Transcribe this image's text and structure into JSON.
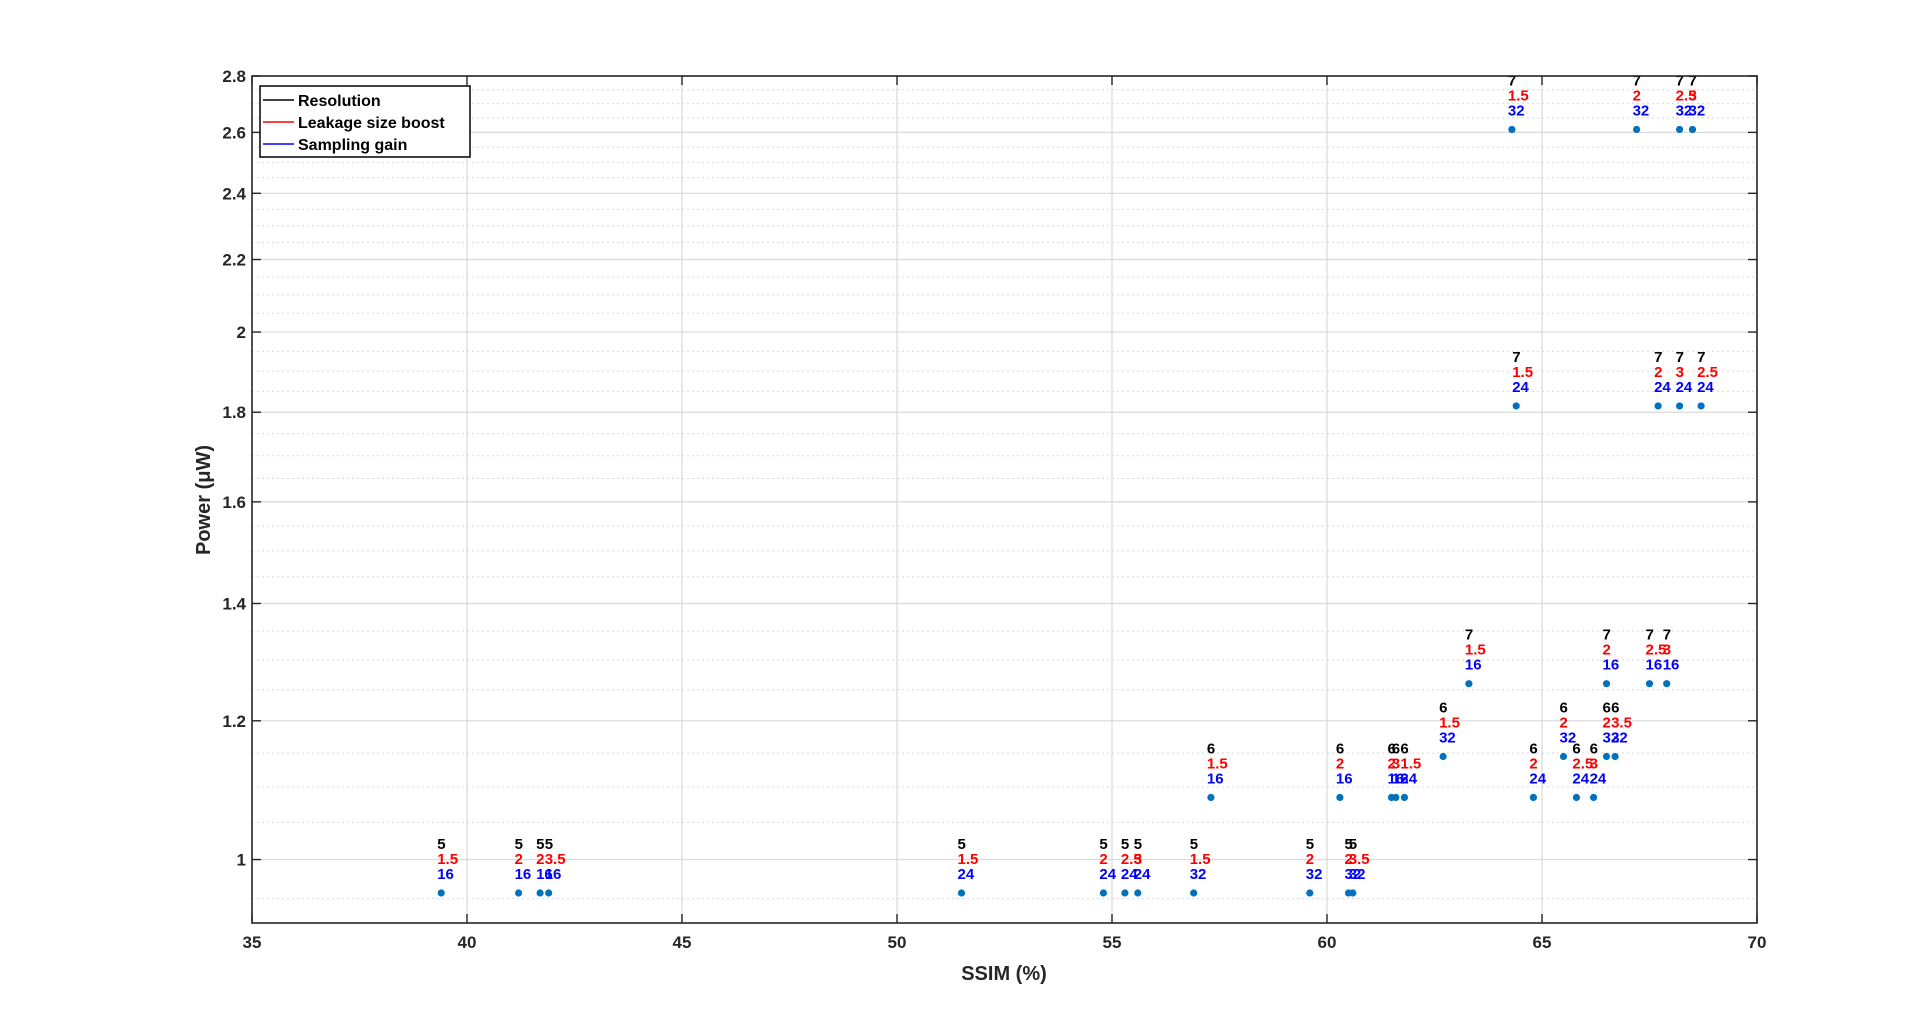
{
  "chart_data": {
    "type": "scatter",
    "title": "",
    "xlabel": "SSIM (%)",
    "ylabel": "Power (μW)",
    "xlim": [
      35,
      70
    ],
    "ylim": [
      0.92,
      2.8
    ],
    "yscale": "log",
    "grid": true,
    "minor_grid": true,
    "legend_position": "top-left",
    "x_ticks": [
      35,
      40,
      45,
      50,
      55,
      60,
      65,
      70
    ],
    "x_tick_labels": [
      "35",
      "40",
      "45",
      "50",
      "55",
      "60",
      "65",
      "70"
    ],
    "y_ticks": [
      1,
      1.2,
      1.4,
      1.6,
      1.8,
      2,
      2.2,
      2.4,
      2.6,
      2.8
    ],
    "y_tick_labels": [
      "1",
      "1.2",
      "1.4",
      "1.6",
      "1.8",
      "2",
      "2.2",
      "2.4",
      "2.6",
      "2.8"
    ],
    "legend": [
      {
        "label": "Resolution",
        "color": "#000000"
      },
      {
        "label": "Leakage size boost",
        "color": "#ff0000"
      },
      {
        "label": "Sampling gain",
        "color": "#0000ff"
      }
    ],
    "colors": {
      "marker": "#0072bd",
      "resolution": "#000000",
      "boost": "#ff0000",
      "gain": "#0000ff",
      "grid": "#d9d9d9",
      "axis": "#262626"
    },
    "points": [
      {
        "x": 39.4,
        "y": 0.957,
        "resolution": "5",
        "boost": "1.5",
        "gain": "16"
      },
      {
        "x": 41.2,
        "y": 0.957,
        "resolution": "5",
        "boost": "2",
        "gain": "16"
      },
      {
        "x": 41.7,
        "y": 0.957,
        "resolution": "5",
        "boost": "2",
        "gain": "16"
      },
      {
        "x": 41.9,
        "y": 0.957,
        "resolution": "5",
        "boost": "3.5",
        "gain": "16"
      },
      {
        "x": 51.5,
        "y": 0.957,
        "resolution": "5",
        "boost": "1.5",
        "gain": "24"
      },
      {
        "x": 54.8,
        "y": 0.957,
        "resolution": "5",
        "boost": "2",
        "gain": "24"
      },
      {
        "x": 55.3,
        "y": 0.957,
        "resolution": "5",
        "boost": "2.5",
        "gain": "24"
      },
      {
        "x": 55.6,
        "y": 0.957,
        "resolution": "5",
        "boost": "3",
        "gain": "24"
      },
      {
        "x": 56.9,
        "y": 0.957,
        "resolution": "5",
        "boost": "1.5",
        "gain": "32"
      },
      {
        "x": 59.6,
        "y": 0.957,
        "resolution": "5",
        "boost": "2",
        "gain": "32"
      },
      {
        "x": 60.5,
        "y": 0.957,
        "resolution": "5",
        "boost": "2",
        "gain": "32"
      },
      {
        "x": 60.6,
        "y": 0.957,
        "resolution": "5",
        "boost": "3.5",
        "gain": "32"
      },
      {
        "x": 57.3,
        "y": 1.085,
        "resolution": "6",
        "boost": "1.5",
        "gain": "16"
      },
      {
        "x": 60.3,
        "y": 1.085,
        "resolution": "6",
        "boost": "2",
        "gain": "16"
      },
      {
        "x": 61.5,
        "y": 1.085,
        "resolution": "6",
        "boost": "2",
        "gain": "16"
      },
      {
        "x": 61.6,
        "y": 1.085,
        "resolution": "6",
        "boost": "3",
        "gain": "16"
      },
      {
        "x": 61.8,
        "y": 1.085,
        "resolution": "6",
        "boost": "1.5",
        "gain": "24"
      },
      {
        "x": 62.7,
        "y": 1.145,
        "resolution": "6",
        "boost": "1.5",
        "gain": "32"
      },
      {
        "x": 64.8,
        "y": 1.085,
        "resolution": "6",
        "boost": "2",
        "gain": "24"
      },
      {
        "x": 65.5,
        "y": 1.145,
        "resolution": "6",
        "boost": "2",
        "gain": "32"
      },
      {
        "x": 65.8,
        "y": 1.085,
        "resolution": "6",
        "boost": "2.5",
        "gain": "24"
      },
      {
        "x": 66.2,
        "y": 1.085,
        "resolution": "6",
        "boost": "3",
        "gain": "24"
      },
      {
        "x": 66.5,
        "y": 1.145,
        "resolution": "6",
        "boost": "2",
        "gain": "32"
      },
      {
        "x": 66.7,
        "y": 1.145,
        "resolution": "6",
        "boost": "3.5",
        "gain": "32"
      },
      {
        "x": 63.3,
        "y": 1.26,
        "resolution": "7",
        "boost": "1.5",
        "gain": "16"
      },
      {
        "x": 66.5,
        "y": 1.26,
        "resolution": "7",
        "boost": "2",
        "gain": "16"
      },
      {
        "x": 67.5,
        "y": 1.26,
        "resolution": "7",
        "boost": "2.5",
        "gain": "16"
      },
      {
        "x": 67.9,
        "y": 1.26,
        "resolution": "7",
        "boost": "3",
        "gain": "16"
      },
      {
        "x": 64.4,
        "y": 1.815,
        "resolution": "7",
        "boost": "1.5",
        "gain": "24"
      },
      {
        "x": 67.7,
        "y": 1.815,
        "resolution": "7",
        "boost": "2",
        "gain": "24"
      },
      {
        "x": 68.2,
        "y": 1.815,
        "resolution": "7",
        "boost": "3",
        "gain": "24"
      },
      {
        "x": 68.7,
        "y": 1.815,
        "resolution": "7",
        "boost": "2.5",
        "gain": "24"
      },
      {
        "x": 64.3,
        "y": 2.61,
        "resolution": "7",
        "boost": "1.5",
        "gain": "32"
      },
      {
        "x": 67.2,
        "y": 2.61,
        "resolution": "7",
        "boost": "2",
        "gain": "32"
      },
      {
        "x": 68.2,
        "y": 2.61,
        "resolution": "7",
        "boost": "2.5",
        "gain": "32"
      },
      {
        "x": 68.5,
        "y": 2.61,
        "resolution": "7",
        "boost": "3",
        "gain": "32"
      }
    ]
  }
}
